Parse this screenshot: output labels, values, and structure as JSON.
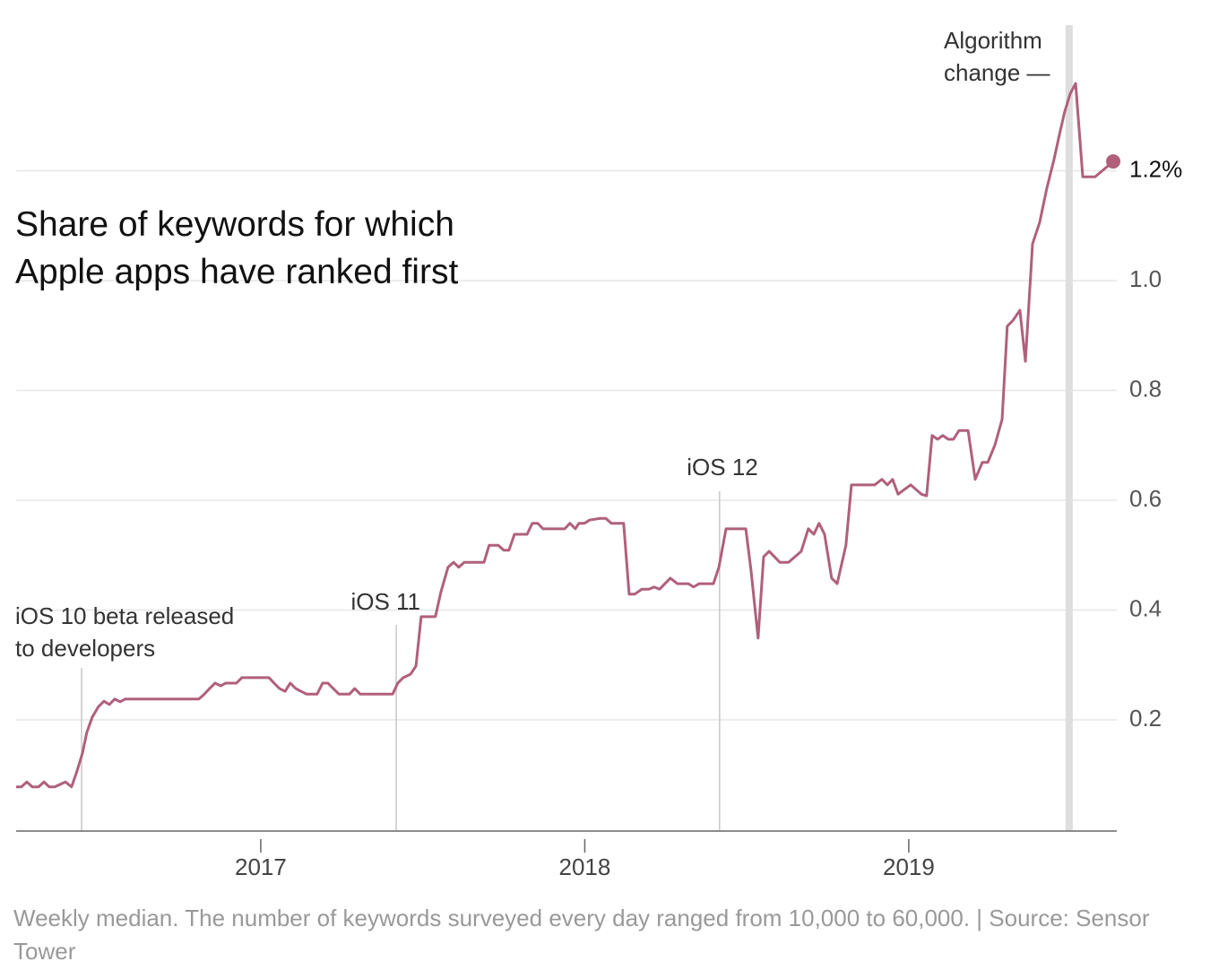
{
  "chart_data": {
    "type": "line",
    "title": "Share of keywords for which Apple apps have ranked first",
    "note": "Weekly median. The number of keywords surveyed every day ranged from 10,000 to 60,000. | Source: Sensor Tower",
    "x": [
      2016.245,
      2016.261,
      2016.278,
      2016.295,
      2016.314,
      2016.331,
      2016.347,
      2016.364,
      2016.397,
      2016.416,
      2016.433,
      2016.45,
      2016.463,
      2016.48,
      2016.499,
      2016.516,
      2016.533,
      2016.549,
      2016.566,
      2016.582,
      2016.599,
      2016.809,
      2016.826,
      2016.842,
      2016.859,
      2016.876,
      2016.892,
      2016.925,
      2016.942,
      2017.025,
      2017.041,
      2017.058,
      2017.075,
      2017.091,
      2017.108,
      2017.141,
      2017.174,
      2017.191,
      2017.207,
      2017.224,
      2017.241,
      2017.274,
      2017.29,
      2017.307,
      2017.407,
      2017.423,
      2017.44,
      2017.462,
      2017.479,
      2017.495,
      2017.539,
      2017.556,
      2017.578,
      2017.595,
      2017.611,
      2017.628,
      2017.689,
      2017.705,
      2017.733,
      2017.75,
      2017.766,
      2017.783,
      2017.822,
      2017.838,
      2017.855,
      2017.871,
      2017.938,
      2017.954,
      2017.971,
      2017.982,
      2017.999,
      2018.015,
      2018.048,
      2018.065,
      2018.082,
      2018.12,
      2018.137,
      2018.154,
      2018.176,
      2018.198,
      2018.214,
      2018.231,
      2018.264,
      2018.286,
      2018.32,
      2018.336,
      2018.353,
      2018.397,
      2018.414,
      2018.436,
      2018.497,
      2018.513,
      2018.535,
      2018.552,
      2018.569,
      2018.602,
      2018.629,
      2018.668,
      2018.69,
      2018.707,
      2018.723,
      2018.74,
      2018.762,
      2018.779,
      2018.806,
      2018.823,
      2018.895,
      2018.917,
      2018.934,
      2018.95,
      2018.967,
      2018.983,
      2019.006,
      2019.039,
      2019.055,
      2019.072,
      2019.089,
      2019.105,
      2019.122,
      2019.138,
      2019.155,
      2019.183,
      2019.205,
      2019.227,
      2019.244,
      2019.266,
      2019.288,
      2019.304,
      2019.321,
      2019.343,
      2019.36,
      2019.382,
      2019.404,
      2019.426,
      2019.448,
      2019.465,
      2019.481,
      2019.498,
      2019.515,
      2019.537,
      2019.575,
      2019.631
    ],
    "series": [
      {
        "color": "#b0607a",
        "values": [
          0.078,
          0.078,
          0.087,
          0.078,
          0.078,
          0.087,
          0.078,
          0.078,
          0.087,
          0.078,
          0.107,
          0.14,
          0.177,
          0.205,
          0.224,
          0.234,
          0.228,
          0.238,
          0.233,
          0.238,
          0.238,
          0.238,
          0.247,
          0.257,
          0.267,
          0.262,
          0.267,
          0.267,
          0.277,
          0.277,
          0.267,
          0.257,
          0.252,
          0.267,
          0.257,
          0.247,
          0.247,
          0.267,
          0.267,
          0.257,
          0.247,
          0.247,
          0.257,
          0.247,
          0.247,
          0.267,
          0.277,
          0.283,
          0.298,
          0.388,
          0.388,
          0.433,
          0.478,
          0.487,
          0.478,
          0.487,
          0.487,
          0.518,
          0.518,
          0.509,
          0.509,
          0.538,
          0.538,
          0.558,
          0.558,
          0.548,
          0.548,
          0.558,
          0.548,
          0.558,
          0.558,
          0.564,
          0.567,
          0.567,
          0.558,
          0.558,
          0.429,
          0.429,
          0.438,
          0.438,
          0.442,
          0.438,
          0.458,
          0.448,
          0.448,
          0.442,
          0.448,
          0.448,
          0.478,
          0.548,
          0.548,
          0.473,
          0.349,
          0.497,
          0.507,
          0.487,
          0.487,
          0.507,
          0.548,
          0.538,
          0.558,
          0.538,
          0.458,
          0.448,
          0.518,
          0.628,
          0.628,
          0.638,
          0.628,
          0.638,
          0.611,
          0.618,
          0.628,
          0.611,
          0.608,
          0.718,
          0.711,
          0.718,
          0.711,
          0.711,
          0.727,
          0.727,
          0.638,
          0.669,
          0.669,
          0.701,
          0.747,
          0.917,
          0.927,
          0.946,
          0.853,
          1.067,
          1.106,
          1.168,
          1.22,
          1.266,
          1.307,
          1.34,
          1.359,
          1.189,
          1.189,
          1.217
        ]
      }
    ],
    "xlim": [
      2016.245,
      2019.642
    ],
    "xticks": [
      2017,
      2018,
      2019
    ],
    "ylim": [
      0,
      1.5
    ],
    "yticks": [
      0.2,
      0.4,
      0.6,
      0.8,
      {
        "value": 1,
        "label": "1.0"
      },
      {
        "value": 1.2,
        "label": "1.2%"
      }
    ],
    "grid": true,
    "annotations": [
      {
        "text": [
          "iOS 10 beta released",
          "to developers"
        ],
        "x": 2016.447
      },
      {
        "text": [
          "iOS 11"
        ],
        "x": 2017.418
      },
      {
        "text": [
          "iOS 12"
        ],
        "x": 2018.416
      },
      {
        "text": [
          "Algorithm",
          "change —"
        ],
        "x": 2019.495
      }
    ]
  }
}
